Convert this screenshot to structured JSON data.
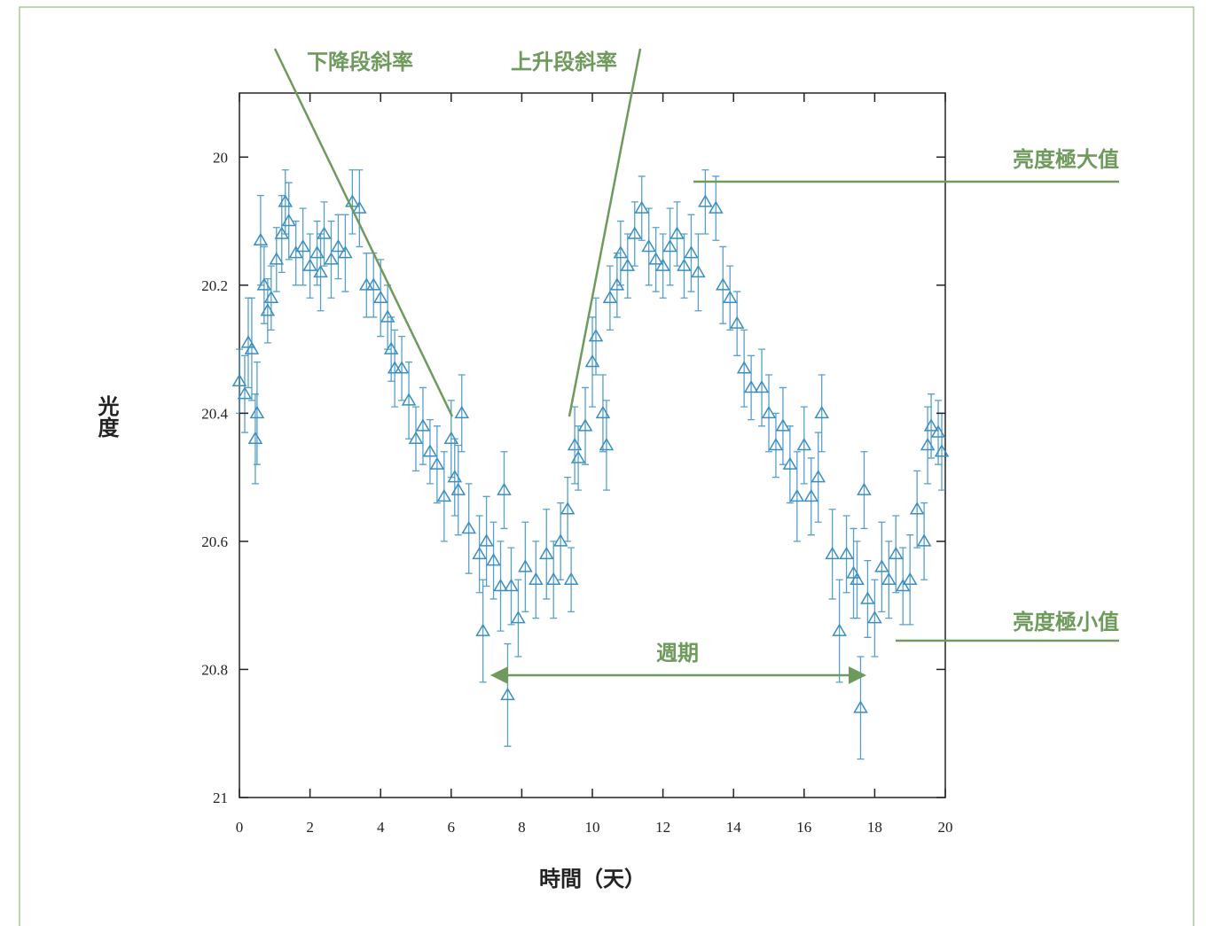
{
  "chart_data": {
    "type": "scatter",
    "x_label": "時間（天）",
    "y_label": "光度",
    "annotations": {
      "falling_slope": "下降段斜率",
      "rising_slope": "上升段斜率",
      "max_brightness": "亮度極大值",
      "min_brightness": "亮度極小值",
      "period": "週期"
    },
    "xlim": [
      0,
      20
    ],
    "xticks": [
      0,
      2,
      4,
      6,
      8,
      10,
      12,
      14,
      16,
      18,
      20
    ],
    "ylim": [
      19.9,
      21
    ],
    "y_inverted": true,
    "yticks": [
      20,
      20.2,
      20.4,
      20.6,
      20.8,
      21
    ],
    "color": "#3a8fc0",
    "marker": "triangle",
    "x": [
      0.0,
      0.15,
      0.25,
      0.35,
      0.45,
      0.5,
      0.6,
      0.7,
      0.8,
      0.9,
      1.05,
      1.2,
      1.3,
      1.4,
      1.6,
      1.8,
      2.0,
      2.2,
      2.3,
      2.4,
      2.6,
      2.8,
      3.0,
      3.2,
      3.4,
      3.6,
      3.8,
      4.0,
      4.2,
      4.3,
      4.4,
      4.6,
      4.8,
      5.0,
      5.2,
      5.4,
      5.6,
      5.8,
      6.0,
      6.1,
      6.2,
      6.3,
      6.5,
      6.8,
      6.9,
      7.0,
      7.2,
      7.4,
      7.5,
      7.6,
      7.7,
      7.9,
      8.1,
      8.4,
      8.7,
      8.9,
      9.1,
      9.3,
      9.4,
      9.5,
      9.6,
      9.8,
      10.0,
      10.1,
      10.3,
      10.4,
      10.5,
      10.7,
      10.8,
      11.0,
      11.2,
      11.4,
      11.6,
      11.8,
      12.0,
      12.2,
      12.4,
      12.6,
      12.8,
      13.0,
      13.2,
      13.5,
      13.7,
      13.9,
      14.1,
      14.3,
      14.5,
      14.8,
      15.0,
      15.2,
      15.4,
      15.6,
      15.8,
      16.0,
      16.2,
      16.4,
      16.5,
      16.8,
      17.0,
      17.2,
      17.4,
      17.5,
      17.6,
      17.7,
      17.8,
      18.0,
      18.2,
      18.4,
      18.6,
      18.8,
      19.0,
      19.2,
      19.4,
      19.5,
      19.6,
      19.8,
      19.9
    ],
    "values": [
      20.35,
      20.37,
      20.29,
      20.3,
      20.44,
      20.4,
      20.13,
      20.2,
      20.24,
      20.22,
      20.16,
      20.12,
      20.07,
      20.1,
      20.15,
      20.14,
      20.17,
      20.15,
      20.18,
      20.12,
      20.16,
      20.14,
      20.15,
      20.07,
      20.08,
      20.2,
      20.2,
      20.22,
      20.25,
      20.3,
      20.33,
      20.33,
      20.38,
      20.44,
      20.42,
      20.46,
      20.48,
      20.53,
      20.44,
      20.5,
      20.52,
      20.4,
      20.58,
      20.62,
      20.74,
      20.6,
      20.63,
      20.67,
      20.52,
      20.84,
      20.67,
      20.72,
      20.64,
      20.66,
      20.62,
      20.66,
      20.6,
      20.55,
      20.66,
      20.45,
      20.47,
      20.42,
      20.32,
      20.28,
      20.4,
      20.45,
      20.22,
      20.2,
      20.15,
      20.17,
      20.12,
      20.08,
      20.14,
      20.16,
      20.17,
      20.14,
      20.12,
      20.17,
      20.15,
      20.18,
      20.07,
      20.08,
      20.2,
      20.22,
      20.26,
      20.33,
      20.36,
      20.36,
      20.4,
      20.45,
      20.42,
      20.48,
      20.53,
      20.45,
      20.53,
      20.5,
      20.4,
      20.62,
      20.74,
      20.62,
      20.65,
      20.66,
      20.86,
      20.52,
      20.69,
      20.72,
      20.64,
      20.66,
      20.62,
      20.67,
      20.66,
      20.55,
      20.6,
      20.45,
      20.42,
      20.43,
      20.46
    ],
    "errors": [
      0.05,
      0.06,
      0.07,
      0.08,
      0.07,
      0.08,
      0.07,
      0.06,
      0.05,
      0.05,
      0.05,
      0.06,
      0.05,
      0.06,
      0.05,
      0.06,
      0.05,
      0.05,
      0.06,
      0.05,
      0.06,
      0.05,
      0.06,
      0.05,
      0.06,
      0.05,
      0.05,
      0.06,
      0.05,
      0.05,
      0.06,
      0.05,
      0.06,
      0.05,
      0.06,
      0.05,
      0.06,
      0.07,
      0.06,
      0.06,
      0.07,
      0.06,
      0.07,
      0.06,
      0.08,
      0.07,
      0.06,
      0.07,
      0.06,
      0.08,
      0.06,
      0.06,
      0.07,
      0.06,
      0.07,
      0.06,
      0.06,
      0.05,
      0.05,
      0.06,
      0.05,
      0.06,
      0.07,
      0.06,
      0.06,
      0.07,
      0.05,
      0.05,
      0.05,
      0.05,
      0.05,
      0.05,
      0.06,
      0.05,
      0.05,
      0.06,
      0.05,
      0.05,
      0.06,
      0.06,
      0.05,
      0.05,
      0.06,
      0.05,
      0.05,
      0.06,
      0.05,
      0.06,
      0.06,
      0.05,
      0.06,
      0.06,
      0.07,
      0.06,
      0.06,
      0.07,
      0.06,
      0.07,
      0.08,
      0.06,
      0.07,
      0.06,
      0.08,
      0.06,
      0.06,
      0.06,
      0.07,
      0.06,
      0.06,
      0.06,
      0.07,
      0.06,
      0.06,
      0.06,
      0.05,
      0.05,
      0.06
    ]
  }
}
